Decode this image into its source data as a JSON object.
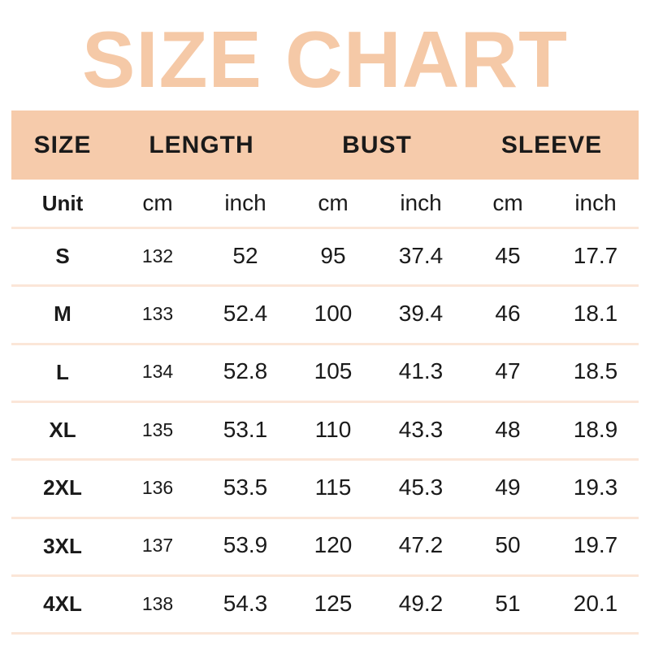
{
  "title": "SIZE CHART",
  "colors": {
    "title": "#f5c9a7",
    "header_bg": "#f6cbab",
    "separator": "#fbe6d8"
  },
  "header": {
    "size": "SIZE",
    "length": "LENGTH",
    "bust": "BUST",
    "sleeve": "SLEEVE"
  },
  "unit_row": [
    "Unit",
    "cm",
    "inch",
    "cm",
    "inch",
    "cm",
    "inch"
  ],
  "rows": [
    [
      "S",
      "132",
      "52",
      "95",
      "37.4",
      "45",
      "17.7"
    ],
    [
      "M",
      "133",
      "52.4",
      "100",
      "39.4",
      "46",
      "18.1"
    ],
    [
      "L",
      "134",
      "52.8",
      "105",
      "41.3",
      "47",
      "18.5"
    ],
    [
      "XL",
      "135",
      "53.1",
      "110",
      "43.3",
      "48",
      "18.9"
    ],
    [
      "2XL",
      "136",
      "53.5",
      "115",
      "45.3",
      "49",
      "19.3"
    ],
    [
      "3XL",
      "137",
      "53.9",
      "120",
      "47.2",
      "50",
      "19.7"
    ],
    [
      "4XL",
      "138",
      "54.3",
      "125",
      "49.2",
      "51",
      "20.1"
    ]
  ]
}
